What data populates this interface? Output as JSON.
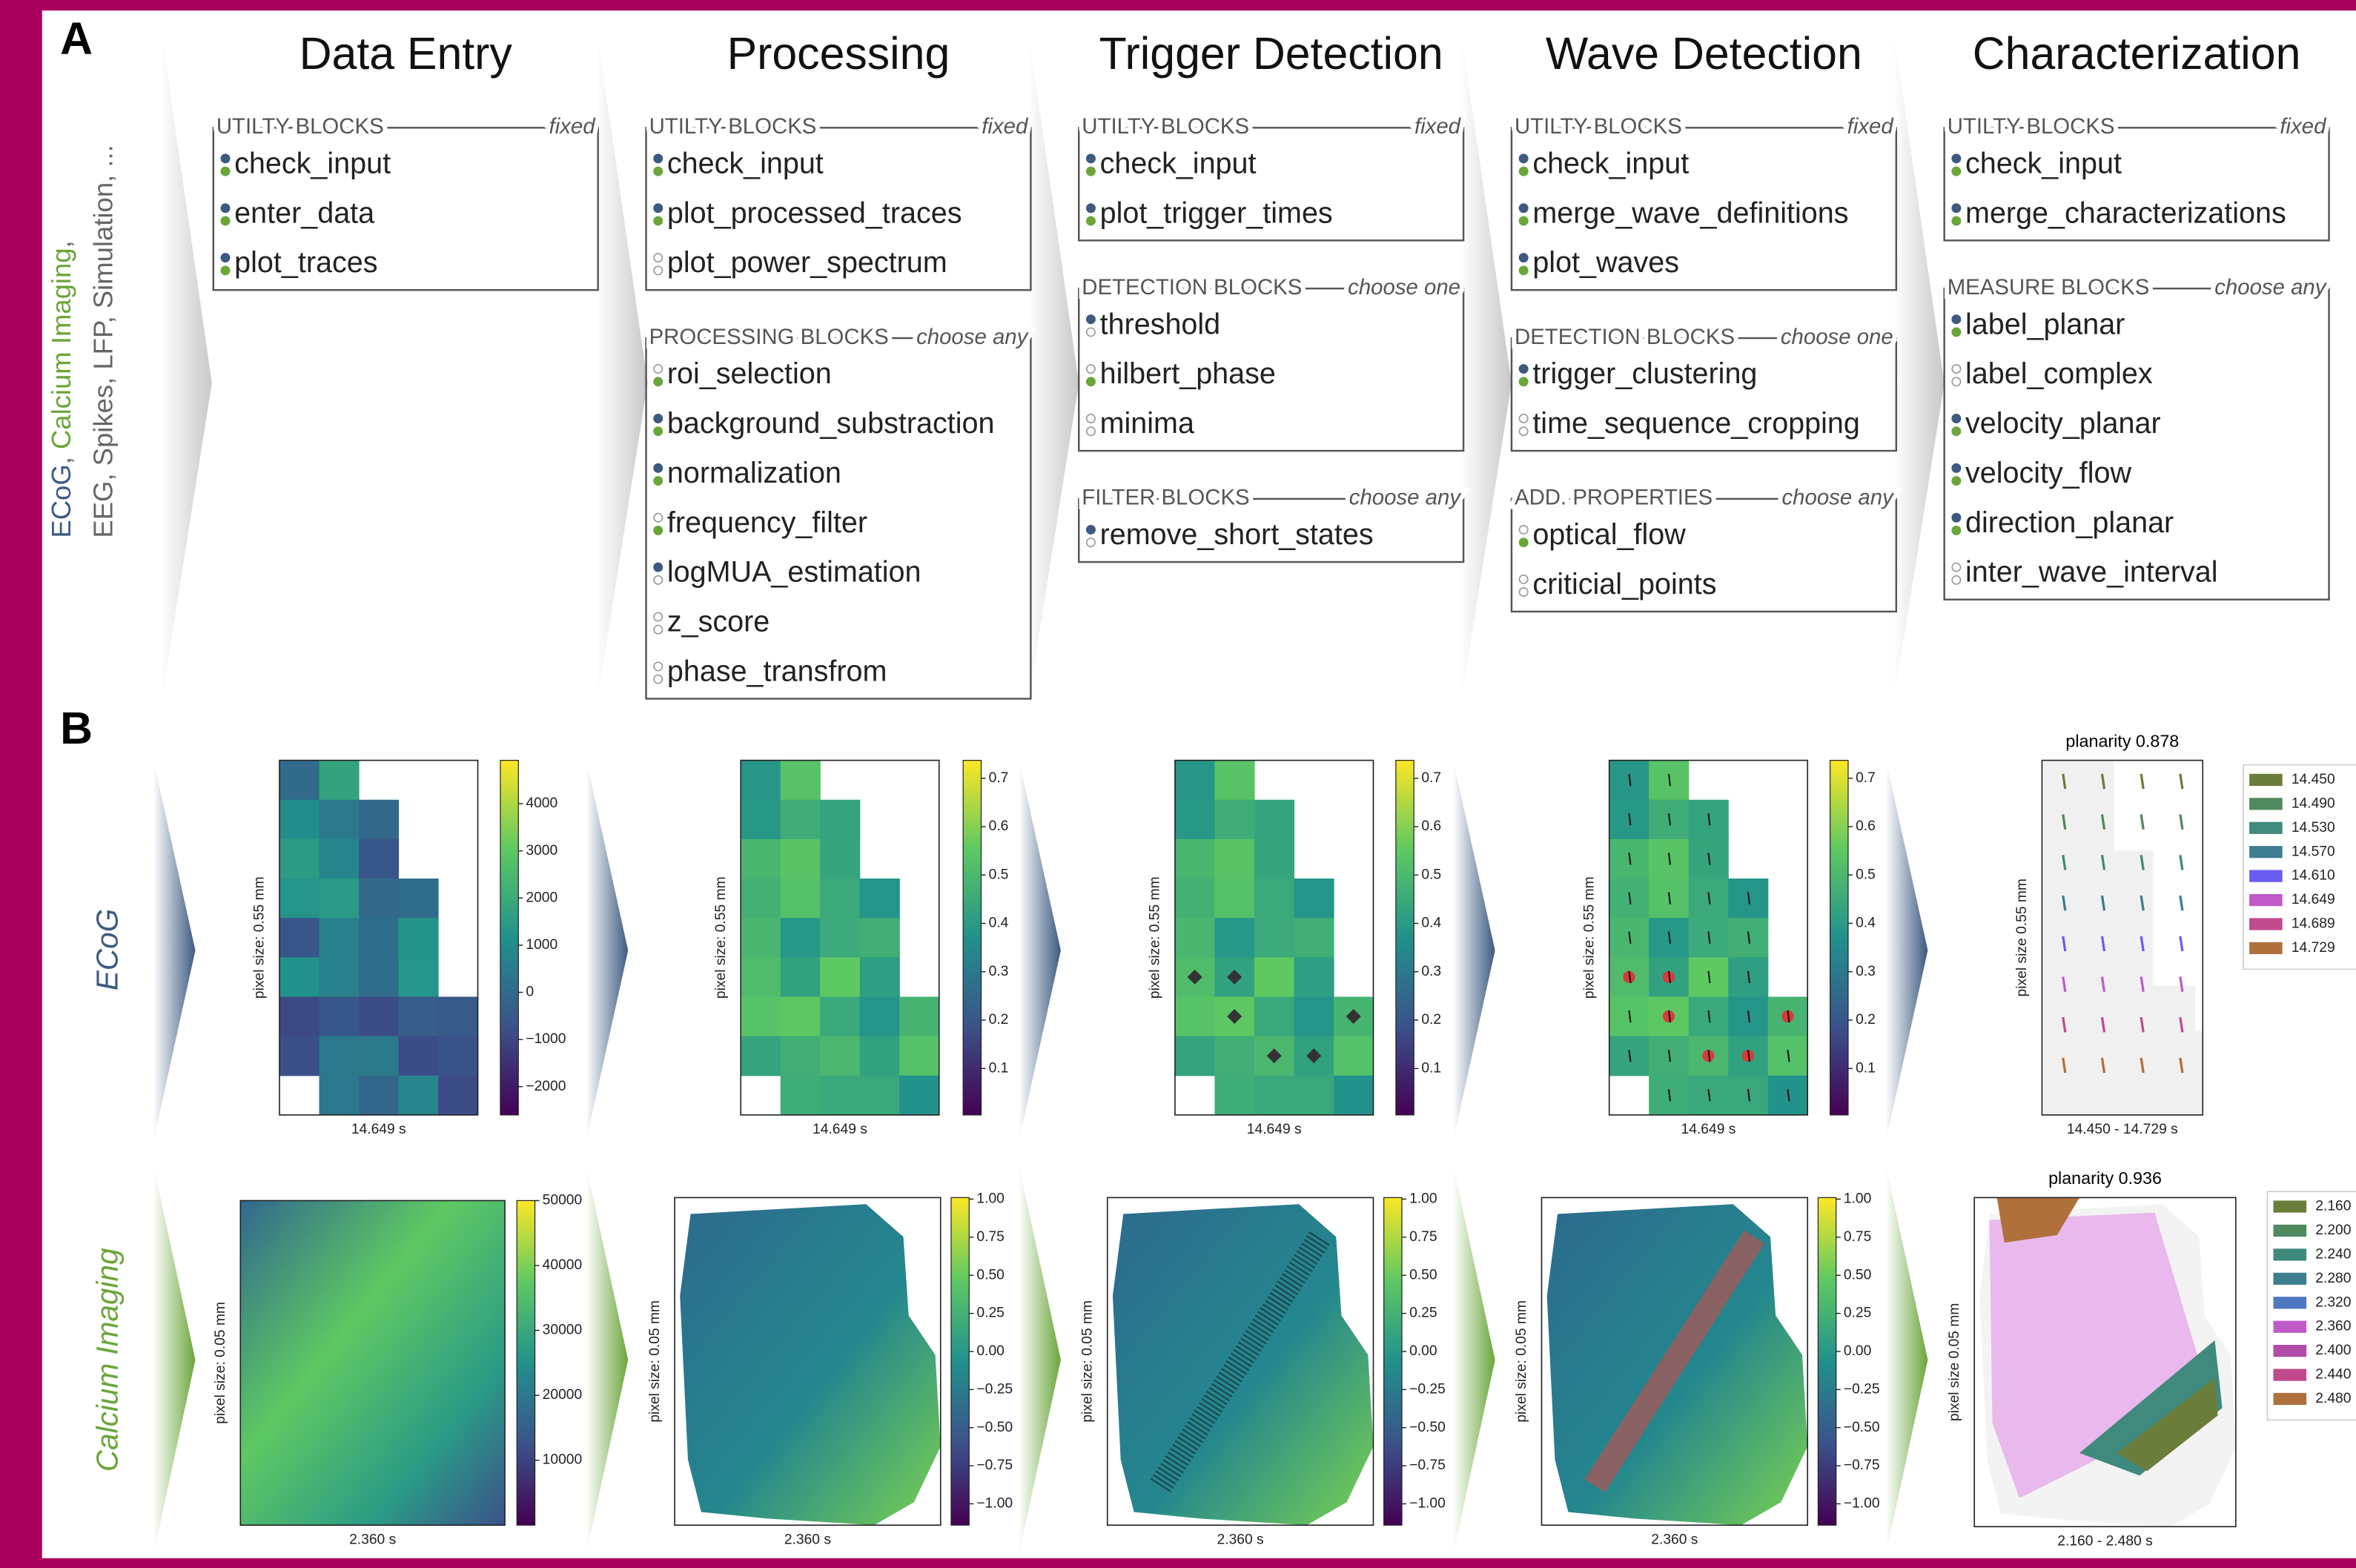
{
  "panel_a": {
    "label": "A",
    "side_text": {
      "line1": [
        {
          "text": "ECoG",
          "color": "#3d5a80"
        },
        {
          "text": ", ",
          "color": "#666666"
        },
        {
          "text": "Calcium Imaging",
          "color": "#6aa53a"
        },
        {
          "text": ",",
          "color": "#666666"
        }
      ],
      "line2": "EEG, Spikes, LFP, Simulation, ..."
    },
    "stages": [
      {
        "title": "Data Entry",
        "blocks": [
          {
            "header": "UTILTY BLOCKS",
            "rule": "fixed",
            "items": [
              {
                "name": "check_input",
                "ecog": true,
                "calcium": true
              },
              {
                "name": "enter_data",
                "ecog": true,
                "calcium": true
              },
              {
                "name": "plot_traces",
                "ecog": true,
                "calcium": true
              }
            ]
          }
        ]
      },
      {
        "title": "Processing",
        "blocks": [
          {
            "header": "UTILTY BLOCKS",
            "rule": "fixed",
            "items": [
              {
                "name": "check_input",
                "ecog": true,
                "calcium": true
              },
              {
                "name": "plot_processed_traces",
                "ecog": true,
                "calcium": true
              },
              {
                "name": "plot_power_spectrum",
                "ecog": false,
                "calcium": false
              }
            ]
          },
          {
            "header": "PROCESSING BLOCKS",
            "rule": "choose any",
            "items": [
              {
                "name": "roi_selection",
                "ecog": false,
                "calcium": true
              },
              {
                "name": "background_substraction",
                "ecog": true,
                "calcium": true
              },
              {
                "name": "normalization",
                "ecog": true,
                "calcium": true
              },
              {
                "name": "frequency_filter",
                "ecog": false,
                "calcium": true
              },
              {
                "name": "logMUA_estimation",
                "ecog": true,
                "calcium": false
              },
              {
                "name": "z_score",
                "ecog": false,
                "calcium": false
              },
              {
                "name": "phase_transfrom",
                "ecog": false,
                "calcium": false
              }
            ]
          }
        ]
      },
      {
        "title": "Trigger Detection",
        "blocks": [
          {
            "header": "UTILTY BLOCKS",
            "rule": "fixed",
            "items": [
              {
                "name": "check_input",
                "ecog": true,
                "calcium": true
              },
              {
                "name": "plot_trigger_times",
                "ecog": true,
                "calcium": true
              }
            ]
          },
          {
            "header": "DETECTION BLOCKS",
            "rule": "choose one",
            "items": [
              {
                "name": "threshold",
                "ecog": true,
                "calcium": false
              },
              {
                "name": "hilbert_phase",
                "ecog": false,
                "calcium": true
              },
              {
                "name": "minima",
                "ecog": false,
                "calcium": false
              }
            ]
          },
          {
            "header": "FILTER BLOCKS",
            "rule": "choose any",
            "items": [
              {
                "name": "remove_short_states",
                "ecog": true,
                "calcium": false
              }
            ]
          }
        ]
      },
      {
        "title": "Wave Detection",
        "blocks": [
          {
            "header": "UTILTY BLOCKS",
            "rule": "fixed",
            "items": [
              {
                "name": "check_input",
                "ecog": true,
                "calcium": true
              },
              {
                "name": "merge_wave_definitions",
                "ecog": true,
                "calcium": true
              },
              {
                "name": "plot_waves",
                "ecog": true,
                "calcium": true
              }
            ]
          },
          {
            "header": "DETECTION BLOCKS",
            "rule": "choose one",
            "items": [
              {
                "name": "trigger_clustering",
                "ecog": true,
                "calcium": true
              },
              {
                "name": "time_sequence_cropping",
                "ecog": false,
                "calcium": false
              }
            ]
          },
          {
            "header": "ADD. PROPERTIES",
            "rule": "choose any",
            "items": [
              {
                "name": "optical_flow",
                "ecog": false,
                "calcium": true
              },
              {
                "name": "criticial_points",
                "ecog": false,
                "calcium": false
              }
            ]
          }
        ]
      },
      {
        "title": "Characterization",
        "blocks": [
          {
            "header": "UTILTY BLOCKS",
            "rule": "fixed",
            "items": [
              {
                "name": "check_input",
                "ecog": true,
                "calcium": true
              },
              {
                "name": "merge_characterizations",
                "ecog": true,
                "calcium": true
              }
            ]
          },
          {
            "header": "MEASURE BLOCKS",
            "rule": "choose any",
            "items": [
              {
                "name": "label_planar",
                "ecog": true,
                "calcium": true
              },
              {
                "name": "label_complex",
                "ecog": false,
                "calcium": false
              },
              {
                "name": "velocity_planar",
                "ecog": true,
                "calcium": true
              },
              {
                "name": "velocity_flow",
                "ecog": true,
                "calcium": true
              },
              {
                "name": "direction_planar",
                "ecog": true,
                "calcium": true
              },
              {
                "name": "inter_wave_interval",
                "ecog": false,
                "calcium": false
              }
            ]
          }
        ]
      }
    ]
  },
  "panel_b": {
    "label": "B",
    "rows": [
      {
        "label": "ECoG",
        "color": "#3d5a80"
      },
      {
        "label": "Calcium Imaging",
        "color": "#6aa53a"
      }
    ]
  },
  "chart_data": [
    {
      "type": "heatmap",
      "xlabel": "14.649 s",
      "ylabel": "pixel size: 0.55 mm",
      "clim": [
        -2600,
        4920
      ],
      "cticks": [
        4000,
        3000,
        2000,
        1000,
        0,
        {
          "value": -1000,
          "label": "−1000"
        },
        {
          "value": -2000,
          "label": "−2000"
        }
      ]
    },
    {
      "type": "heatmap",
      "xlabel": "14.649 s",
      "ylabel": "pixel size: 0.55 mm",
      "clim": [
        0.004,
        0.737
      ],
      "cticks": [
        0.7,
        0.6,
        0.5,
        0.4,
        0.3,
        0.2,
        0.1
      ]
    },
    {
      "type": "heatmap",
      "xlabel": "14.649 s",
      "ylabel": "pixel size: 0.55 mm",
      "clim": [
        0.004,
        0.737
      ],
      "cticks": [
        0.7,
        0.6,
        0.5,
        0.4,
        0.3,
        0.2,
        0.1
      ]
    },
    {
      "type": "heatmap",
      "xlabel": "14.649 s",
      "ylabel": "pixel size: 0.55 mm",
      "clim": [
        0.004,
        0.737
      ],
      "cticks": [
        0.7,
        0.6,
        0.5,
        0.4,
        0.3,
        0.2,
        0.1
      ]
    },
    {
      "type": "vector_field",
      "title": "planarity 0.878",
      "xlabel": "14.450 - 14.729 s",
      "ylabel": "pixel size 0.55 mm",
      "legend": [
        {
          "name": "14.450",
          "color": "#6b7d3a"
        },
        {
          "name": "14.490",
          "color": "#4e8a5e"
        },
        {
          "name": "14.530",
          "color": "#3f8a7c"
        },
        {
          "name": "14.570",
          "color": "#3f7d90"
        },
        {
          "name": "14.610",
          "color": "#6a5cf0"
        },
        {
          "name": "14.649",
          "color": "#c05ac8"
        },
        {
          "name": "14.689",
          "color": "#c04a8c"
        },
        {
          "name": "14.729",
          "color": "#b0703c"
        }
      ]
    },
    {
      "type": "heatmap",
      "xlabel": "2.360 s",
      "ylabel": "pixel size: 0.05 mm",
      "clim": [
        0,
        50000
      ],
      "cticks": [
        50000,
        40000,
        30000,
        20000,
        10000
      ]
    },
    {
      "type": "heatmap",
      "xlabel": "2.360 s",
      "ylabel": "pixel size: 0.05 mm",
      "clim": [
        -1.14,
        1.01
      ],
      "cticks": [
        {
          "value": 1,
          "label": "1.00"
        },
        0.75,
        {
          "value": 0.5,
          "label": "0.50"
        },
        0.25,
        {
          "value": 0,
          "label": "0.00"
        },
        {
          "value": -0.25,
          "label": "−0.25"
        },
        {
          "value": -0.5,
          "label": "−0.50"
        },
        {
          "value": -0.75,
          "label": "−0.75"
        },
        {
          "value": -1,
          "label": "−1.00"
        }
      ]
    },
    {
      "type": "heatmap",
      "xlabel": "2.360 s",
      "ylabel": "pixel size: 0.05 mm",
      "clim": [
        -1.14,
        1.01
      ],
      "cticks": [
        {
          "value": 1,
          "label": "1.00"
        },
        0.75,
        {
          "value": 0.5,
          "label": "0.50"
        },
        0.25,
        {
          "value": 0,
          "label": "0.00"
        },
        {
          "value": -0.25,
          "label": "−0.25"
        },
        {
          "value": -0.5,
          "label": "−0.50"
        },
        {
          "value": -0.75,
          "label": "−0.75"
        },
        {
          "value": -1,
          "label": "−1.00"
        }
      ]
    },
    {
      "type": "heatmap",
      "xlabel": "2.360 s",
      "ylabel": "pixel size: 0.05 mm",
      "clim": [
        -1.14,
        1.01
      ],
      "cticks": [
        {
          "value": 1,
          "label": "1.00"
        },
        0.75,
        {
          "value": 0.5,
          "label": "0.50"
        },
        0.25,
        {
          "value": 0,
          "label": "0.00"
        },
        {
          "value": -0.25,
          "label": "−0.25"
        },
        {
          "value": -0.5,
          "label": "−0.50"
        },
        {
          "value": -0.75,
          "label": "−0.75"
        },
        {
          "value": -1,
          "label": "−1.00"
        }
      ]
    },
    {
      "type": "vector_field",
      "title": "planarity 0.936",
      "xlabel": "2.160 - 2.480 s",
      "ylabel": "pixel size 0.05 mm",
      "legend": [
        {
          "name": "2.160",
          "color": "#6b7d3a"
        },
        {
          "name": "2.200",
          "color": "#4e8a5e"
        },
        {
          "name": "2.240",
          "color": "#3f8a7c"
        },
        {
          "name": "2.280",
          "color": "#3f7d90"
        },
        {
          "name": "2.320",
          "color": "#4f78c0"
        },
        {
          "name": "2.360",
          "color": "#c05ac8"
        },
        {
          "name": "2.400",
          "color": "#b04ca8"
        },
        {
          "name": "2.440",
          "color": "#c04a8c"
        },
        {
          "name": "2.480",
          "color": "#b0703c"
        }
      ]
    }
  ]
}
